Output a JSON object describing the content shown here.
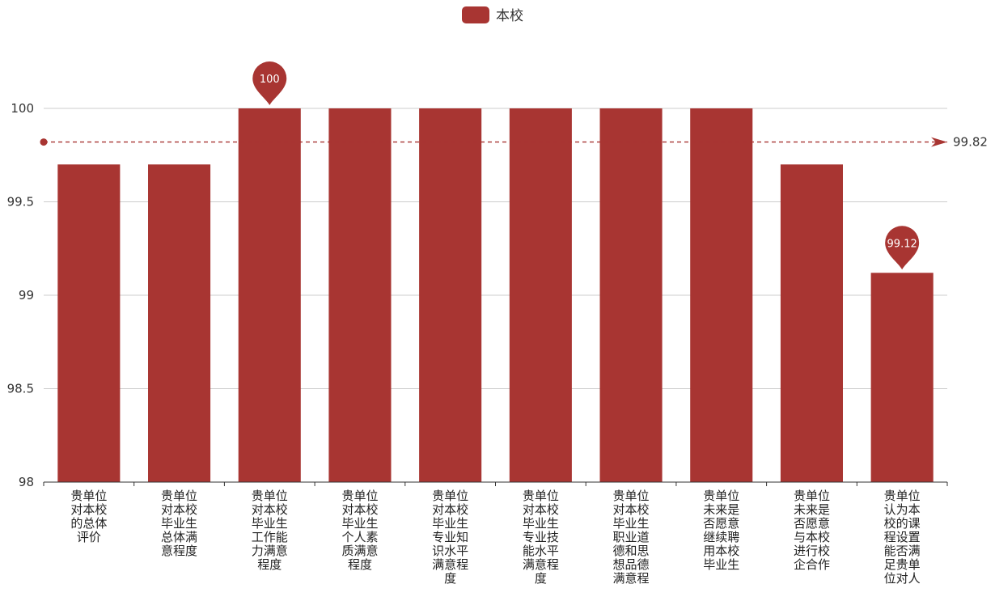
{
  "chart_data": {
    "type": "bar",
    "title": "",
    "xlabel": "",
    "ylabel": "",
    "ylim": [
      98,
      100
    ],
    "yticks": [
      "98",
      "98.5",
      "99",
      "99.5",
      "100"
    ],
    "grid": true,
    "legend_position": "top-center",
    "categories": [
      "贵单位对本校的总体评价",
      "贵单位对本校毕业生总体满意程度",
      "贵单位对本校毕业生工作能力满意程度",
      "贵单位对本校毕业生个人素质满意程度",
      "贵单位对本校毕业生专业知识水平满意程度",
      "贵单位对本校毕业生专业技能水平满意程度",
      "贵单位对本校毕业生职业道德和思想品德满意程",
      "贵单位未来是否愿意继续聘用本校毕业生",
      "贵单位未来是否愿意与本校进行校企合作",
      "贵单位认为本校的课程设置能否满足贵单位对人"
    ],
    "category_lines": [
      [
        "贵单位",
        "对本校",
        "的总体",
        "评价"
      ],
      [
        "贵单位",
        "对本校",
        "毕业生",
        "总体满",
        "意程度"
      ],
      [
        "贵单位",
        "对本校",
        "毕业生",
        "工作能",
        "力满意",
        "程度"
      ],
      [
        "贵单位",
        "对本校",
        "毕业生",
        "个人素",
        "质满意",
        "程度"
      ],
      [
        "贵单位",
        "对本校",
        "毕业生",
        "专业知",
        "识水平",
        "满意程",
        "度"
      ],
      [
        "贵单位",
        "对本校",
        "毕业生",
        "专业技",
        "能水平",
        "满意程",
        "度"
      ],
      [
        "贵单位",
        "对本校",
        "毕业生",
        "职业道",
        "德和思",
        "想品德",
        "满意程"
      ],
      [
        "贵单位",
        "未来是",
        "否愿意",
        "继续聘",
        "用本校",
        "毕业生"
      ],
      [
        "贵单位",
        "未来是",
        "否愿意",
        "与本校",
        "进行校",
        "企合作"
      ],
      [
        "贵单位",
        "认为本",
        "校的课",
        "程设置",
        "能否满",
        "足贵单",
        "位对人"
      ]
    ],
    "series": [
      {
        "name": "本校",
        "color": "#a83532",
        "values": [
          99.7,
          99.7,
          100,
          100,
          100,
          100,
          100,
          100,
          99.7,
          99.12
        ]
      }
    ],
    "mark_points": [
      {
        "label": "100",
        "index": 2,
        "value": 100
      },
      {
        "label": "99.12",
        "index": 9,
        "value": 99.12
      }
    ],
    "mark_line": {
      "label": "99.82",
      "value": 99.82,
      "type": "average"
    }
  }
}
